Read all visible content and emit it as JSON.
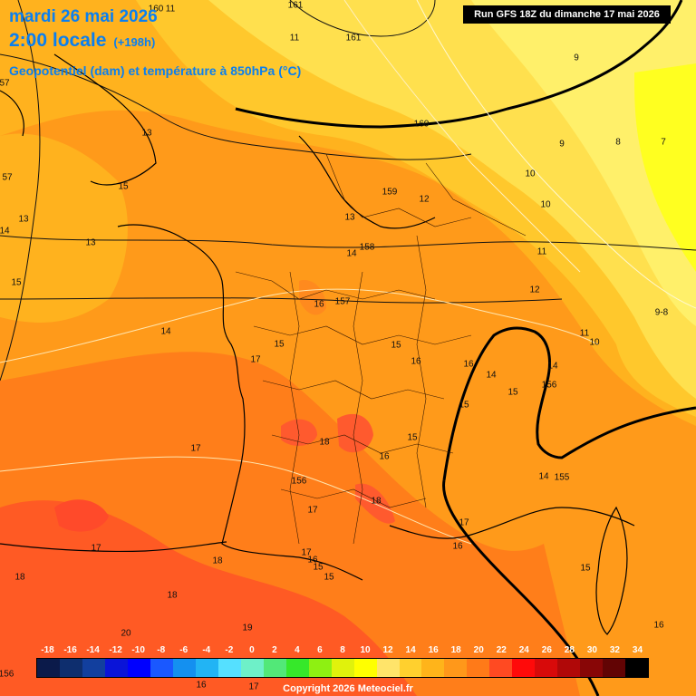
{
  "header": {
    "date_line": "mardi 26 mai 2026",
    "time_line": "2:00 locale",
    "lead_time": "(+198h)",
    "field_name": "Geopotentiel (dam) et température à 850hPa (°C)",
    "run_info": "Run GFS 18Z du dimanche 17 mai 2026"
  },
  "legend": {
    "ticks": [
      "-18",
      "-16",
      "-14",
      "-12",
      "-10",
      "-8",
      "-6",
      "-4",
      "-2",
      "0",
      "2",
      "4",
      "6",
      "8",
      "10",
      "12",
      "14",
      "16",
      "18",
      "20",
      "22",
      "24",
      "26",
      "28",
      "30",
      "32",
      "34"
    ],
    "colors": [
      "#0b1a4a",
      "#0e2e6e",
      "#123f9e",
      "#0a14d8",
      "#0000ff",
      "#1a58ff",
      "#1490f0",
      "#22b4f4",
      "#55e0ff",
      "#6ef0c8",
      "#52e878",
      "#36e82a",
      "#8ef012",
      "#e0f20c",
      "#ffff00",
      "#ffe46a",
      "#ffd02e",
      "#ffb41a",
      "#ff981a",
      "#ff7a18",
      "#ff4a22",
      "#ff0a0a",
      "#d80a0a",
      "#b00808",
      "#880606",
      "#620404",
      "#000000"
    ]
  },
  "copyright": "Copyright 2026 Meteociel.fr",
  "map_labels": [
    {
      "text": "160"
    },
    {
      "text": "11"
    },
    {
      "text": "161"
    },
    {
      "text": "161"
    },
    {
      "text": "11"
    },
    {
      "text": "9"
    },
    {
      "text": "160"
    },
    {
      "text": "9"
    },
    {
      "text": "8"
    },
    {
      "text": "7"
    },
    {
      "text": "13"
    },
    {
      "text": "57"
    },
    {
      "text": "57"
    },
    {
      "text": "15"
    },
    {
      "text": "13"
    },
    {
      "text": "14"
    },
    {
      "text": "13"
    },
    {
      "text": "15"
    },
    {
      "text": "159"
    },
    {
      "text": "12"
    },
    {
      "text": "10"
    },
    {
      "text": "10"
    },
    {
      "text": "13"
    },
    {
      "text": "158"
    },
    {
      "text": "14"
    },
    {
      "text": "11"
    },
    {
      "text": "12"
    },
    {
      "text": "16"
    },
    {
      "text": "157"
    },
    {
      "text": "9-8"
    },
    {
      "text": "14"
    },
    {
      "text": "15"
    },
    {
      "text": "15"
    },
    {
      "text": "11"
    },
    {
      "text": "10"
    },
    {
      "text": "17"
    },
    {
      "text": "16"
    },
    {
      "text": "16"
    },
    {
      "text": "14"
    },
    {
      "text": "14"
    },
    {
      "text": "156"
    },
    {
      "text": "15"
    },
    {
      "text": "15"
    },
    {
      "text": "18"
    },
    {
      "text": "15"
    },
    {
      "text": "17"
    },
    {
      "text": "16"
    },
    {
      "text": "156"
    },
    {
      "text": "14"
    },
    {
      "text": "155"
    },
    {
      "text": "18"
    },
    {
      "text": "17"
    },
    {
      "text": "17"
    },
    {
      "text": "17"
    },
    {
      "text": "16"
    },
    {
      "text": "17"
    },
    {
      "text": "16"
    },
    {
      "text": "15"
    },
    {
      "text": "18"
    },
    {
      "text": "18"
    },
    {
      "text": "15"
    },
    {
      "text": "15"
    },
    {
      "text": "18"
    },
    {
      "text": "20"
    },
    {
      "text": "19"
    },
    {
      "text": "16"
    },
    {
      "text": "16"
    },
    {
      "text": "17"
    },
    {
      "text": "156"
    }
  ]
}
